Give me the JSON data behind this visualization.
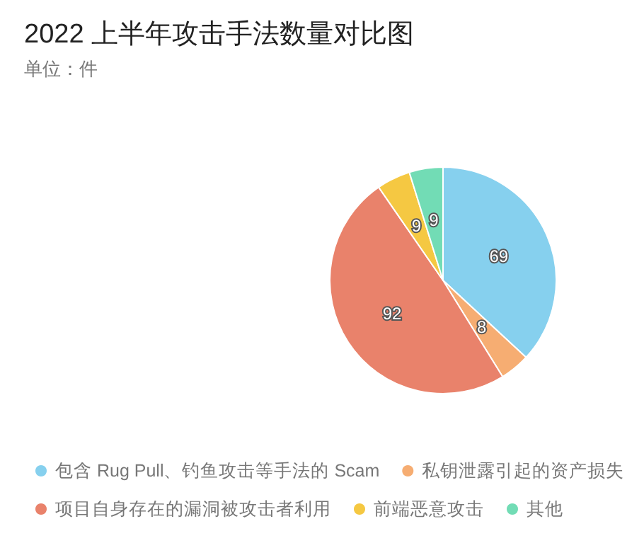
{
  "chart_data": {
    "type": "pie",
    "title": "2022 上半年攻击手法数量对比图",
    "subtitle": "单位：件",
    "categories": [
      "包含 Rug Pull、钓鱼攻击等手法的 Scam",
      "私钥泄露引起的资产损失",
      "项目自身存在的漏洞被攻击者利用",
      "前端恶意攻击",
      "其他"
    ],
    "values": [
      69,
      8,
      92,
      9,
      9
    ],
    "colors": [
      "#86d0ee",
      "#f6ad72",
      "#e9826b",
      "#f5c842",
      "#72dcb5"
    ],
    "data_labels": true,
    "legend": "bottom"
  }
}
